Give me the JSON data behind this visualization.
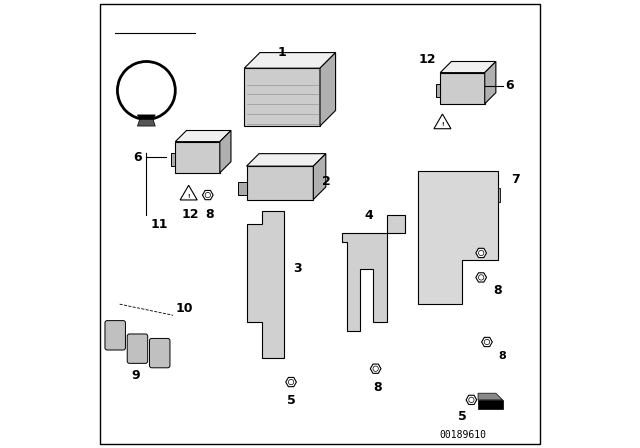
{
  "bg_color": "#ffffff",
  "border_color": "#000000",
  "fig_width": 6.4,
  "fig_height": 4.48,
  "dpi": 100,
  "watermark": "00189610"
}
